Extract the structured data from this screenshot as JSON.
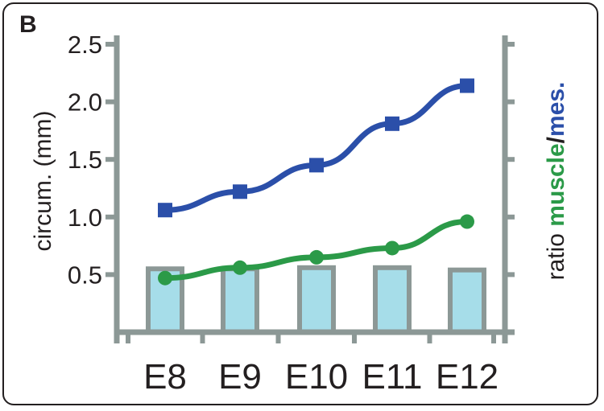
{
  "panel_label": "B",
  "colors": {
    "axis": "#8c9896",
    "bar_fill": "#a6dde9",
    "circum": "#2b4fa9",
    "ratio": "#2b9a48",
    "text": "#231f20"
  },
  "chart_data": {
    "type": "bar+line",
    "title": "",
    "xlabel": "",
    "ylabel": "circum. (mm)",
    "y2label": {
      "prefix": "ratio ",
      "muscle": "muscle",
      "slash": "/",
      "mes": "mes."
    },
    "categories": [
      "E8",
      "E9",
      "E10",
      "E11",
      "E12"
    ],
    "ylim": [
      0,
      2.5
    ],
    "yticks": [
      "0.5",
      "1.0",
      "1.5",
      "2.0",
      "2.5"
    ],
    "ytick_values": [
      0.5,
      1.0,
      1.5,
      2.0,
      2.5
    ],
    "y2_tick_count": 6,
    "grid": false,
    "bars": {
      "name": "",
      "values": [
        0.55,
        0.55,
        0.56,
        0.56,
        0.54
      ]
    },
    "series": [
      {
        "name": "",
        "marker": "square",
        "values": [
          1.06,
          1.22,
          1.45,
          1.81,
          2.14
        ]
      },
      {
        "name": "",
        "marker": "circle",
        "values": [
          0.47,
          0.56,
          0.65,
          0.73,
          0.96
        ]
      }
    ]
  }
}
